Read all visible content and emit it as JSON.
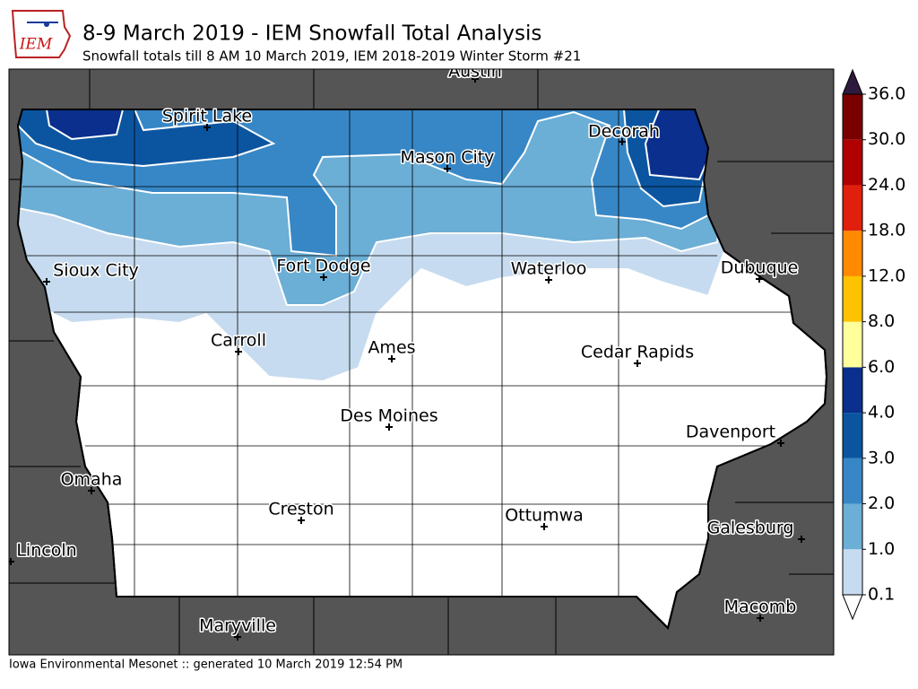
{
  "header": {
    "title": "8-9 March 2019 - IEM Snowfall Total Analysis",
    "subtitle": "Snowfall totals till 8 AM 10 March 2019, IEM 2018-2019 Winter Storm #21",
    "logo": "IEM"
  },
  "cities": [
    "Austin",
    "Spirit Lake",
    "Decorah",
    "Mason City",
    "Sioux City",
    "Fort Dodge",
    "Waterloo",
    "Dubuque",
    "Carroll",
    "Ames",
    "Cedar Rapids",
    "Des Moines",
    "Davenport",
    "Omaha",
    "Creston",
    "Ottumwa",
    "Galesburg",
    "Lincoln",
    "Macomb",
    "Maryville"
  ],
  "colorbar": {
    "ticks": [
      0.1,
      {
        "value": 1,
        "label": "1.0"
      },
      {
        "value": 2,
        "label": "2.0"
      },
      {
        "value": 3,
        "label": "3.0"
      },
      {
        "value": 4,
        "label": "4.0"
      },
      {
        "value": 6,
        "label": "6.0"
      },
      {
        "value": 8,
        "label": "8.0"
      },
      {
        "value": 12,
        "label": "12.0"
      },
      {
        "value": 18,
        "label": "18.0"
      },
      {
        "value": 24,
        "label": "24.0"
      },
      {
        "value": 30,
        "label": "30.0"
      },
      {
        "value": 36,
        "label": "36.0"
      }
    ],
    "colors": [
      "#c6dbef",
      "#6baed6",
      "#3787c6",
      "#0b55a0",
      "#0a2f8c",
      "#ffff9c",
      "#ffc200",
      "#ff8a00",
      "#e0200c",
      "#b00000",
      "#7a0000"
    ]
  },
  "footer": "Iowa Environmental Mesonet :: generated 10 March 2019 12:54 PM"
}
